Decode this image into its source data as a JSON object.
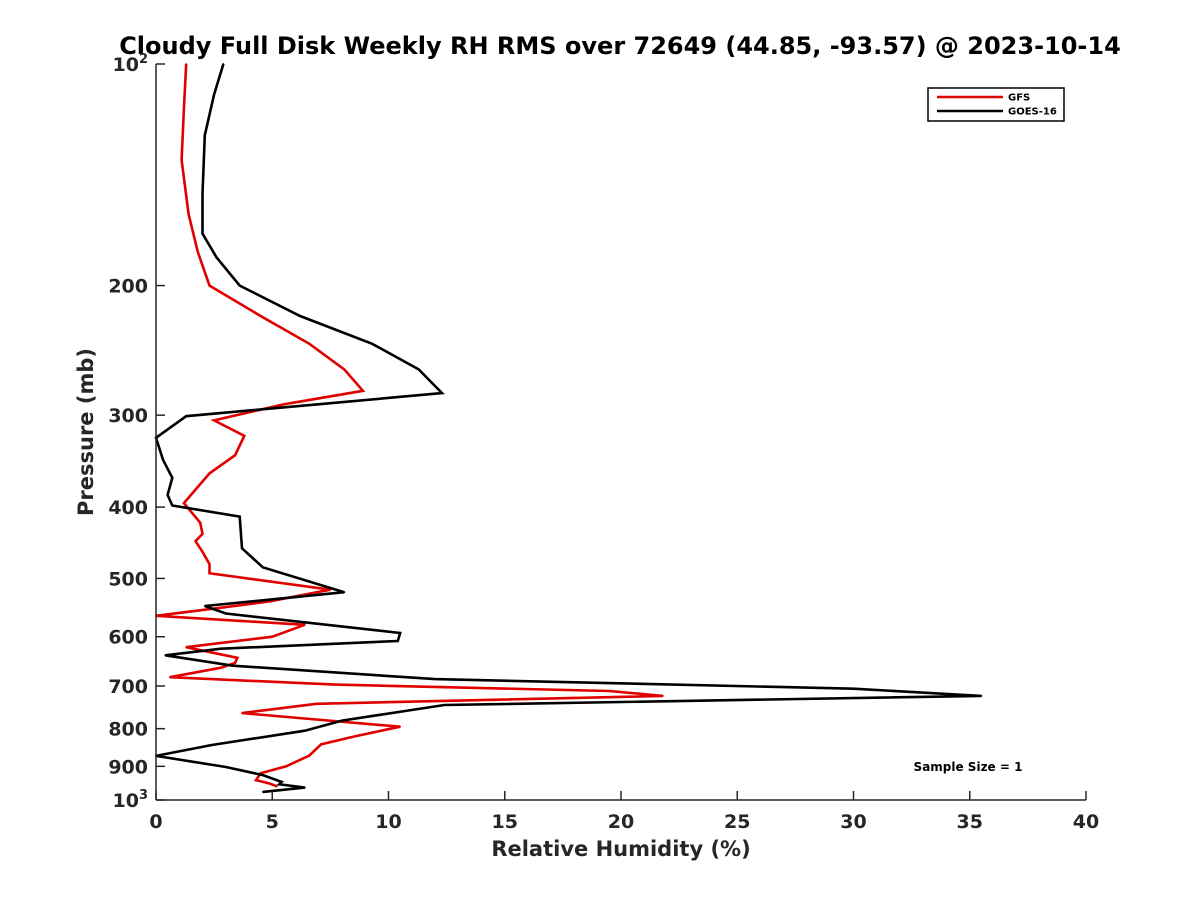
{
  "chart_data": {
    "type": "line",
    "title": "Cloudy Full Disk Weekly RH RMS over 72649 (44.85, -93.57) @ 2023-10-14",
    "xlabel": "Relative Humidity (%)",
    "ylabel": "Pressure (mb)",
    "xlim": [
      0,
      40
    ],
    "ylim": [
      100,
      1000
    ],
    "y_scale": "log",
    "y_reversed": true,
    "x_ticks": [
      "0",
      "5",
      "10",
      "15",
      "20",
      "25",
      "30",
      "35",
      "40"
    ],
    "y_ticks": [
      {
        "value": 100,
        "base": "10",
        "exp": "2"
      },
      {
        "value": 200,
        "base": "200",
        "exp": ""
      },
      {
        "value": 300,
        "base": "300",
        "exp": ""
      },
      {
        "value": 400,
        "base": "400",
        "exp": ""
      },
      {
        "value": 500,
        "base": "500",
        "exp": ""
      },
      {
        "value": 600,
        "base": "600",
        "exp": ""
      },
      {
        "value": 700,
        "base": "700",
        "exp": ""
      },
      {
        "value": 800,
        "base": "800",
        "exp": ""
      },
      {
        "value": 900,
        "base": "900",
        "exp": ""
      },
      {
        "value": 1000,
        "base": "10",
        "exp": "3"
      }
    ],
    "grid": false,
    "legend_position": "top-right",
    "annotation": "Sample Size = 1",
    "series": [
      {
        "name": "GFS",
        "color": "#e00000",
        "points": [
          [
            1.3,
            100
          ],
          [
            1.2,
            115
          ],
          [
            1.1,
            135
          ],
          [
            1.4,
            160
          ],
          [
            1.8,
            180
          ],
          [
            2.3,
            200
          ],
          [
            4.5,
            220
          ],
          [
            6.6,
            240
          ],
          [
            8.1,
            260
          ],
          [
            8.9,
            278
          ],
          [
            5.5,
            290
          ],
          [
            2.5,
            305
          ],
          [
            3.8,
            320
          ],
          [
            3.4,
            340
          ],
          [
            2.3,
            360
          ],
          [
            1.2,
            395
          ],
          [
            1.9,
            420
          ],
          [
            2.0,
            435
          ],
          [
            1.7,
            445
          ],
          [
            2.0,
            460
          ],
          [
            2.3,
            478
          ],
          [
            2.3,
            492
          ],
          [
            7.5,
            518
          ],
          [
            4.9,
            537
          ],
          [
            2.8,
            548
          ],
          [
            0.0,
            562
          ],
          [
            6.4,
            578
          ],
          [
            5.0,
            600
          ],
          [
            1.3,
            620
          ],
          [
            3.5,
            641
          ],
          [
            3.4,
            651
          ],
          [
            2.8,
            661
          ],
          [
            0.6,
            681
          ],
          [
            7.7,
            697
          ],
          [
            19.5,
            711
          ],
          [
            21.8,
            722
          ],
          [
            6.9,
            740
          ],
          [
            3.7,
            762
          ],
          [
            10.5,
            795
          ],
          [
            8.5,
            820
          ],
          [
            7.1,
            840
          ],
          [
            6.6,
            870
          ],
          [
            5.6,
            900
          ],
          [
            4.5,
            920
          ],
          [
            4.3,
            940
          ],
          [
            4.9,
            950
          ],
          [
            5.2,
            958
          ]
        ]
      },
      {
        "name": "GOES-16",
        "color": "#000000",
        "points": [
          [
            2.9,
            100
          ],
          [
            2.5,
            110
          ],
          [
            2.1,
            125
          ],
          [
            2.0,
            150
          ],
          [
            2.0,
            170
          ],
          [
            2.6,
            183
          ],
          [
            3.6,
            200
          ],
          [
            6.2,
            220
          ],
          [
            9.3,
            240
          ],
          [
            11.3,
            260
          ],
          [
            12.3,
            280
          ],
          [
            1.3,
            301
          ],
          [
            0.0,
            322
          ],
          [
            0.3,
            345
          ],
          [
            0.7,
            365
          ],
          [
            0.5,
            385
          ],
          [
            0.7,
            398
          ],
          [
            3.6,
            412
          ],
          [
            3.7,
            455
          ],
          [
            4.6,
            483
          ],
          [
            8.1,
            522
          ],
          [
            2.1,
            545
          ],
          [
            3.0,
            558
          ],
          [
            10.5,
            593
          ],
          [
            10.4,
            608
          ],
          [
            2.8,
            623
          ],
          [
            0.4,
            636
          ],
          [
            3.3,
            657
          ],
          [
            12.0,
            685
          ],
          [
            30.0,
            706
          ],
          [
            35.5,
            722
          ],
          [
            12.4,
            743
          ],
          [
            8.0,
            780
          ],
          [
            6.4,
            805
          ],
          [
            2.4,
            842
          ],
          [
            0.0,
            871
          ],
          [
            3.0,
            902
          ],
          [
            4.6,
            925
          ],
          [
            5.4,
            945
          ],
          [
            5.3,
            952
          ],
          [
            6.4,
            962
          ],
          [
            4.6,
            975
          ]
        ]
      }
    ]
  }
}
